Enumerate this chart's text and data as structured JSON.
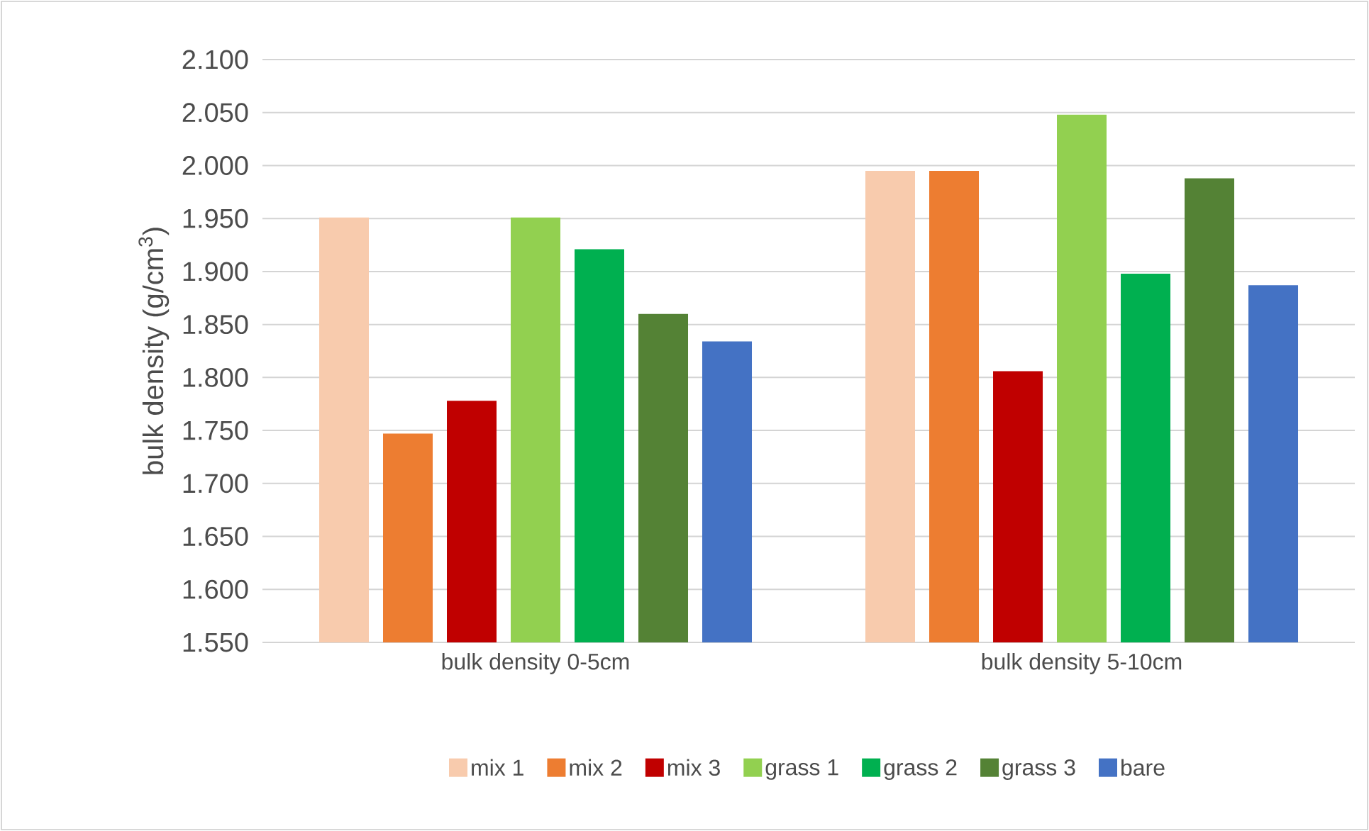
{
  "chart_data": {
    "type": "bar",
    "ylabel": "bulk density (g/cm$^{3}$)",
    "categories": [
      "bulk density 0-5cm",
      "bulk density 5-10cm"
    ],
    "series": [
      {
        "name": "mix 1",
        "color": "#f8cbad",
        "values": [
          1.951,
          1.995
        ]
      },
      {
        "name": "mix 2",
        "color": "#ed7d31",
        "values": [
          1.747,
          1.995
        ]
      },
      {
        "name": "mix 3",
        "color": "#c00000",
        "values": [
          1.778,
          1.806
        ]
      },
      {
        "name": "grass 1",
        "color": "#92d050",
        "values": [
          1.951,
          2.048
        ]
      },
      {
        "name": "grass 2",
        "color": "#00b050",
        "values": [
          1.921,
          1.898
        ]
      },
      {
        "name": "grass 3",
        "color": "#548235",
        "values": [
          1.86,
          1.988
        ]
      },
      {
        "name": "bare",
        "color": "#4472c4",
        "values": [
          1.834,
          1.887
        ]
      }
    ],
    "ylim": [
      1.55,
      2.1
    ],
    "yticks": [
      {
        "value": 1.55,
        "label": "1.550"
      },
      {
        "value": 1.6,
        "label": "1.600"
      },
      {
        "value": 1.65,
        "label": "1.650"
      },
      {
        "value": 1.7,
        "label": "1.700"
      },
      {
        "value": 1.75,
        "label": "1.750"
      },
      {
        "value": 1.8,
        "label": "1.800"
      },
      {
        "value": 1.85,
        "label": "1.850"
      },
      {
        "value": 1.9,
        "label": "1.900"
      },
      {
        "value": 1.95,
        "label": "1.950"
      },
      {
        "value": 2.0,
        "label": "2.000"
      },
      {
        "value": 2.05,
        "label": "2.050"
      },
      {
        "value": 2.1,
        "label": "2.100"
      }
    ],
    "grid": "y",
    "legend": "bottom"
  }
}
